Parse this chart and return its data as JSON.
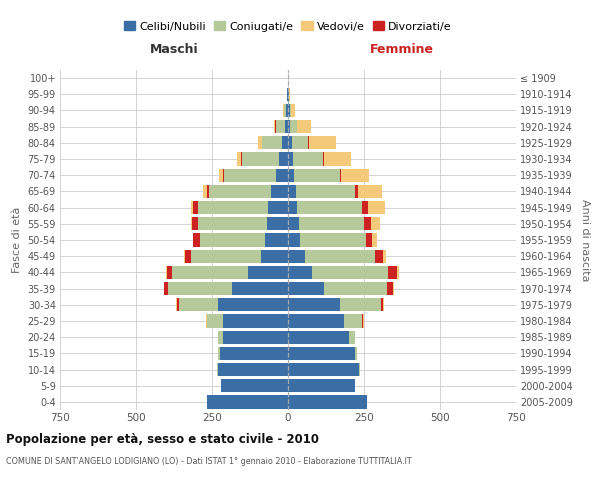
{
  "age_groups": [
    "0-4",
    "5-9",
    "10-14",
    "15-19",
    "20-24",
    "25-29",
    "30-34",
    "35-39",
    "40-44",
    "45-49",
    "50-54",
    "55-59",
    "60-64",
    "65-69",
    "70-74",
    "75-79",
    "80-84",
    "85-89",
    "90-94",
    "95-99",
    "100+"
  ],
  "birth_years": [
    "2005-2009",
    "2000-2004",
    "1995-1999",
    "1990-1994",
    "1985-1989",
    "1980-1984",
    "1975-1979",
    "1970-1974",
    "1965-1969",
    "1960-1964",
    "1955-1959",
    "1950-1954",
    "1945-1949",
    "1940-1944",
    "1935-1939",
    "1930-1934",
    "1925-1929",
    "1920-1924",
    "1915-1919",
    "1910-1914",
    "≤ 1909"
  ],
  "male": {
    "celibi": [
      265,
      220,
      230,
      225,
      215,
      215,
      230,
      185,
      130,
      90,
      75,
      70,
      65,
      55,
      40,
      30,
      20,
      10,
      5,
      2,
      0
    ],
    "coniugati": [
      0,
      0,
      2,
      5,
      15,
      50,
      130,
      210,
      250,
      230,
      215,
      225,
      230,
      205,
      170,
      120,
      65,
      30,
      8,
      2,
      0
    ],
    "vedovi": [
      0,
      0,
      0,
      0,
      0,
      2,
      2,
      2,
      2,
      2,
      2,
      3,
      5,
      10,
      12,
      15,
      12,
      5,
      2,
      0,
      0
    ],
    "divorziati": [
      0,
      0,
      0,
      0,
      0,
      3,
      5,
      12,
      18,
      20,
      22,
      22,
      18,
      8,
      5,
      3,
      2,
      2,
      0,
      0,
      0
    ]
  },
  "female": {
    "nubili": [
      260,
      220,
      235,
      220,
      200,
      185,
      170,
      120,
      80,
      55,
      40,
      35,
      30,
      25,
      20,
      15,
      12,
      8,
      5,
      2,
      0
    ],
    "coniugate": [
      0,
      0,
      2,
      8,
      20,
      60,
      135,
      205,
      250,
      230,
      215,
      215,
      215,
      195,
      150,
      100,
      55,
      20,
      5,
      2,
      0
    ],
    "vedove": [
      0,
      0,
      0,
      0,
      0,
      2,
      2,
      3,
      5,
      10,
      15,
      30,
      55,
      80,
      90,
      90,
      90,
      45,
      12,
      2,
      0
    ],
    "divorziate": [
      0,
      0,
      0,
      0,
      0,
      3,
      8,
      20,
      30,
      28,
      22,
      22,
      18,
      10,
      5,
      3,
      2,
      2,
      0,
      0,
      0
    ]
  },
  "colors": {
    "celibi": "#3a6ea5",
    "coniugati": "#b5c99a",
    "vedovi": "#f5c97a",
    "divorziati": "#cc2222"
  },
  "xlim": 750,
  "title": "Popolazione per età, sesso e stato civile - 2010",
  "subtitle": "COMUNE DI SANT'ANGELO LODIGIANO (LO) - Dati ISTAT 1° gennaio 2010 - Elaborazione TUTTITALIA.IT",
  "ylabel_left": "Fasce di età",
  "ylabel_right": "Anni di nascita",
  "label_maschi": "Maschi",
  "label_femmine": "Femmine",
  "legend_labels": [
    "Celibi/Nubili",
    "Coniugati/e",
    "Vedovi/e",
    "Divorziati/e"
  ],
  "legend_color_keys": [
    "celibi",
    "coniugati",
    "vedovi",
    "divorziati"
  ]
}
